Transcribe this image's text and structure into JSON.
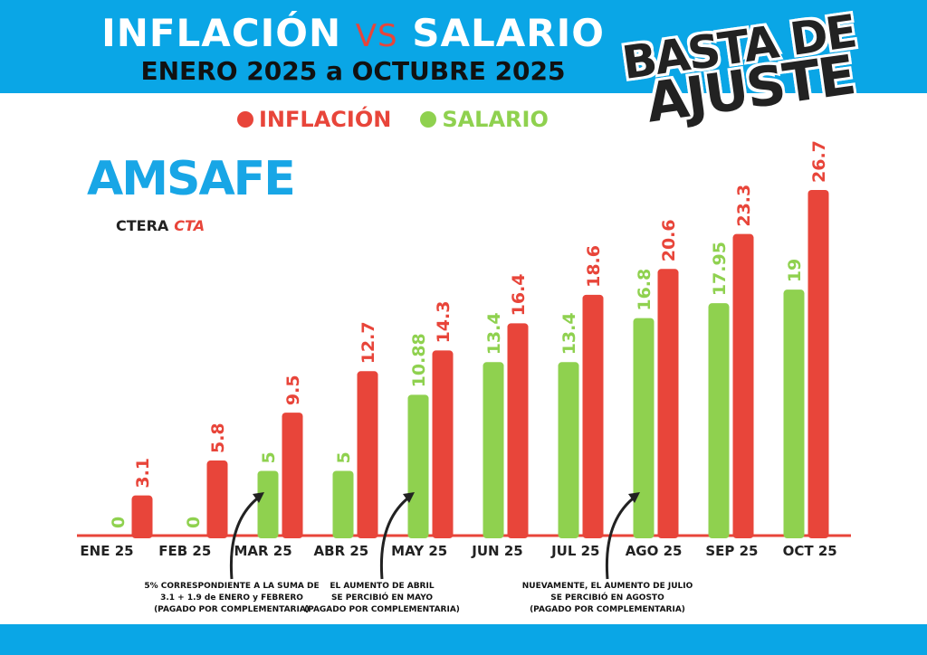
{
  "header": {
    "title_left": "INFLACIÓN",
    "title_vs": "VS",
    "title_right": "SALARIO",
    "subtitle": "ENERO 2025 a OCTUBRE 2025",
    "stamp_line1": "BASTA DE",
    "stamp_line2": "AJUSTE"
  },
  "logo": {
    "main": "AMSAFE",
    "ctera": "CTERA",
    "cta": "CTA"
  },
  "colors": {
    "inflacion": "#e8453a",
    "salario": "#8fd14f",
    "band": "#0aa6e6"
  },
  "chart_data": {
    "type": "bar",
    "title": "INFLACIÓN VS SALARIO",
    "categories": [
      "ENE 25",
      "FEB 25",
      "MAR 25",
      "ABR 25",
      "MAY 25",
      "JUN 25",
      "JUL 25",
      "AGO 25",
      "SEP 25",
      "OCT 25"
    ],
    "series": [
      {
        "name": "SALARIO",
        "values": [
          0,
          0,
          5,
          5,
          10.88,
          13.4,
          13.4,
          16.8,
          17.95,
          19
        ],
        "labels": [
          "0",
          "0",
          "5",
          "5",
          "10.88",
          "13.4",
          "13.4",
          "16.8",
          "17.95",
          "19"
        ]
      },
      {
        "name": "INFLACIÓN",
        "values": [
          3.1,
          5.8,
          9.5,
          12.7,
          14.3,
          16.4,
          18.6,
          20.6,
          23.3,
          26.7
        ],
        "labels": [
          "3.1",
          "5.8",
          "9.5",
          "12.7",
          "14.3",
          "16.4",
          "18.6",
          "20.6",
          "23.3",
          "26.7"
        ]
      }
    ],
    "legend": [
      "INFLACIÓN",
      "SALARIO"
    ],
    "legend_position": "top",
    "ylim": [
      0,
      27
    ],
    "annotations": [
      {
        "category": "MAR 25",
        "lines": [
          "5% CORRESPONDIENTE A LA SUMA DE",
          "3.1 + 1.9 de ENERO y FEBRERO",
          "(PAGADO POR COMPLEMENTARIA)"
        ]
      },
      {
        "category": "MAY 25",
        "lines": [
          "EL AUMENTO DE ABRIL",
          "SE PERCIBIÓ EN MAYO",
          "(PAGADO POR COMPLEMENTARIA)"
        ]
      },
      {
        "category": "AGO 25",
        "lines": [
          "NUEVAMENTE, EL AUMENTO DE JULIO",
          "SE PERCIBIÓ EN AGOSTO",
          "(PAGADO POR COMPLEMENTARIA)"
        ]
      }
    ]
  }
}
